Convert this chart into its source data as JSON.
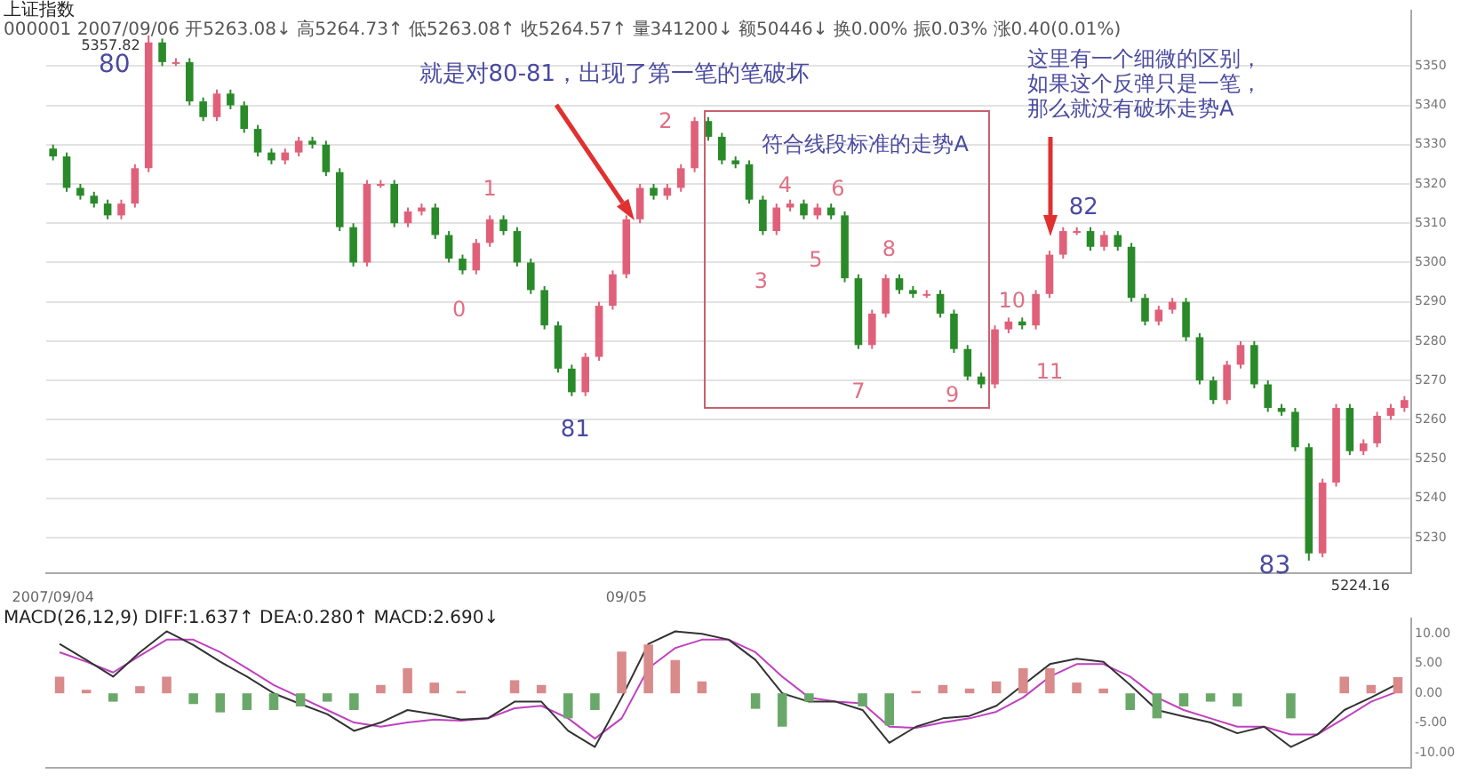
{
  "chart_data": [
    {
      "type": "candlestick",
      "title": "上证指数",
      "subtitle": "000001 2007/09/06 开5263.08↓ 高5264.73↑ 低5263.08↑ 收5264.57↑ 量341200↓ 额50446↓ 换0.00% 振0.03% 涨0.40(0.01%)",
      "categories": [
        "2007/09/04",
        null,
        null,
        null,
        null,
        null,
        null,
        null,
        null,
        null,
        null,
        null,
        null,
        null,
        null,
        null,
        null,
        null,
        null,
        null,
        null,
        null,
        null,
        null,
        null,
        null,
        null,
        null,
        null,
        null,
        null,
        null,
        null,
        null,
        null,
        null,
        null,
        null,
        null,
        null,
        null,
        null,
        "09/05",
        null,
        null,
        null,
        null,
        null,
        null,
        null,
        null,
        null,
        null,
        null,
        null,
        null,
        null,
        null,
        null,
        null,
        null,
        null,
        null,
        null,
        null,
        null,
        null,
        null,
        null,
        null,
        null,
        null,
        null,
        null,
        null,
        null,
        null,
        null,
        null,
        null,
        null,
        null,
        null,
        null,
        null,
        null,
        null,
        null,
        null,
        null,
        null,
        null,
        null,
        null,
        null,
        null,
        null,
        null,
        null,
        null
      ],
      "ohlc": [
        [
          5329,
          5330,
          5326,
          5327
        ],
        [
          5327,
          5328,
          5318,
          5319
        ],
        [
          5319,
          5320,
          5316,
          5317
        ],
        [
          5317,
          5318,
          5314,
          5315
        ],
        [
          5315,
          5316,
          5311,
          5312
        ],
        [
          5312,
          5316,
          5311,
          5315
        ],
        [
          5315,
          5325,
          5314,
          5324
        ],
        [
          5324,
          5357.82,
          5323,
          5356
        ],
        [
          5356,
          5357,
          5350,
          5351
        ],
        [
          5351,
          5352,
          5350,
          5351
        ],
        [
          5351,
          5352,
          5340,
          5341
        ],
        [
          5341,
          5342,
          5336,
          5337
        ],
        [
          5337,
          5344,
          5336,
          5343
        ],
        [
          5343,
          5344,
          5339,
          5340
        ],
        [
          5340,
          5341,
          5333,
          5334
        ],
        [
          5334,
          5335,
          5327,
          5328
        ],
        [
          5328,
          5329,
          5325,
          5326
        ],
        [
          5326,
          5329,
          5325,
          5328
        ],
        [
          5328,
          5332,
          5327,
          5331
        ],
        [
          5331,
          5332,
          5329,
          5330
        ],
        [
          5330,
          5331,
          5322,
          5323
        ],
        [
          5323,
          5324,
          5308,
          5309
        ],
        [
          5309,
          5310,
          5299,
          5300
        ],
        [
          5300,
          5321,
          5299,
          5320
        ],
        [
          5320,
          5321,
          5319,
          5320
        ],
        [
          5320,
          5321,
          5309,
          5310
        ],
        [
          5310,
          5314,
          5309,
          5313
        ],
        [
          5313,
          5315,
          5312,
          5314
        ],
        [
          5314,
          5315,
          5306,
          5307
        ],
        [
          5307,
          5308,
          5300,
          5301
        ],
        [
          5301,
          5302,
          5297,
          5298
        ],
        [
          5298,
          5306,
          5297,
          5305
        ],
        [
          5305,
          5312,
          5304,
          5311
        ],
        [
          5311,
          5312,
          5307,
          5308
        ],
        [
          5308,
          5309,
          5299,
          5300
        ],
        [
          5300,
          5301,
          5292,
          5293
        ],
        [
          5293,
          5294,
          5283,
          5284
        ],
        [
          5284,
          5285,
          5272,
          5273
        ],
        [
          5273,
          5274,
          5266,
          5267
        ],
        [
          5267,
          5277,
          5266,
          5276
        ],
        [
          5276,
          5290,
          5275,
          5289
        ],
        [
          5289,
          5298,
          5288,
          5297
        ],
        [
          5297,
          5312,
          5296,
          5311
        ],
        [
          5311,
          5320,
          5310,
          5319
        ],
        [
          5319,
          5320,
          5316,
          5317
        ],
        [
          5317,
          5320,
          5316,
          5319
        ],
        [
          5319,
          5325,
          5318,
          5324
        ],
        [
          5324,
          5337,
          5323,
          5336
        ],
        [
          5336,
          5337,
          5331,
          5332
        ],
        [
          5332,
          5333,
          5325,
          5326
        ],
        [
          5326,
          5327,
          5324,
          5325
        ],
        [
          5325,
          5326,
          5315,
          5316
        ],
        [
          5316,
          5317,
          5307,
          5308
        ],
        [
          5308,
          5315,
          5307,
          5314
        ],
        [
          5314,
          5316,
          5313,
          5315
        ],
        [
          5315,
          5316,
          5311,
          5312
        ],
        [
          5312,
          5315,
          5311,
          5314
        ],
        [
          5314,
          5315,
          5311,
          5312
        ],
        [
          5312,
          5313,
          5295,
          5296
        ],
        [
          5296,
          5297,
          5278,
          5279
        ],
        [
          5279,
          5288,
          5278,
          5287
        ],
        [
          5287,
          5297,
          5286,
          5296
        ],
        [
          5296,
          5297,
          5292,
          5293
        ],
        [
          5293,
          5294,
          5291,
          5292
        ],
        [
          5292,
          5293,
          5291,
          5292
        ],
        [
          5292,
          5293,
          5286,
          5287
        ],
        [
          5287,
          5288,
          5277,
          5278
        ],
        [
          5278,
          5279,
          5270,
          5271
        ],
        [
          5271,
          5272,
          5268,
          5269
        ],
        [
          5269,
          5284,
          5268,
          5283
        ],
        [
          5283,
          5286,
          5282,
          5285
        ],
        [
          5285,
          5286,
          5283,
          5284
        ],
        [
          5284,
          5293,
          5283,
          5292
        ],
        [
          5292,
          5303,
          5291,
          5302
        ],
        [
          5302,
          5309,
          5301,
          5308
        ],
        [
          5308,
          5309,
          5307,
          5308
        ],
        [
          5308,
          5309,
          5303,
          5304
        ],
        [
          5304,
          5308,
          5303,
          5307
        ],
        [
          5307,
          5308,
          5303,
          5304
        ],
        [
          5304,
          5305,
          5290,
          5291
        ],
        [
          5291,
          5292,
          5284,
          5285
        ],
        [
          5285,
          5289,
          5284,
          5288
        ],
        [
          5288,
          5291,
          5287,
          5290
        ],
        [
          5290,
          5291,
          5280,
          5281
        ],
        [
          5281,
          5282,
          5269,
          5270
        ],
        [
          5270,
          5271,
          5264,
          5265
        ],
        [
          5265,
          5275,
          5264,
          5274
        ],
        [
          5274,
          5280,
          5273,
          5279
        ],
        [
          5279,
          5280,
          5268,
          5269
        ],
        [
          5269,
          5270,
          5262,
          5263
        ],
        [
          5263,
          5264,
          5261,
          5262
        ],
        [
          5262,
          5263,
          5252,
          5253
        ],
        [
          5253,
          5254,
          5224.16,
          5226
        ],
        [
          5226,
          5245,
          5225,
          5244
        ],
        [
          5244,
          5264,
          5243,
          5263
        ],
        [
          5263,
          5264,
          5251,
          5252
        ],
        [
          5252,
          5255,
          5251,
          5254
        ],
        [
          5254,
          5262,
          5253,
          5261
        ],
        [
          5261,
          5264,
          5260,
          5263
        ],
        [
          5263,
          5266,
          5262,
          5265
        ]
      ],
      "ylim": [
        5221,
        5364
      ],
      "yticks": [
        5350,
        5340,
        5330,
        5320,
        5310,
        5300,
        5290,
        5280,
        5270,
        5260,
        5250,
        5240,
        5230
      ],
      "grid": "y",
      "legend": false,
      "annotations": [
        "80",
        "5357.82",
        "就是对80-81，出现了第一笔的笔破坏",
        "0",
        "1",
        "81",
        "2",
        "符合线段标准的走势A",
        "3",
        "4",
        "5",
        "6",
        "7",
        "8",
        "9",
        "10",
        "11",
        "82",
        "这里有一个细微的区别，如果这个反弹只是一笔，那么就没有破坏走势A",
        "83",
        "5224.16"
      ]
    },
    {
      "type": "bar",
      "title": "MACD(26,12,9) DIFF:1.637↑ DEA:0.280↑ MACD:2.690↓",
      "categories": [
        null,
        null,
        null,
        null,
        null,
        null,
        null,
        null,
        null,
        null,
        null,
        null,
        null,
        null,
        null,
        null,
        null,
        null,
        null,
        null,
        null,
        null,
        null,
        null,
        null,
        null,
        null,
        null,
        null,
        null,
        null,
        null,
        null,
        null,
        null,
        null,
        null,
        null,
        null,
        null,
        null,
        null,
        null,
        null,
        null,
        null,
        null,
        null,
        null,
        null,
        null
      ],
      "series": [
        {
          "type": "bar",
          "colors": [
            "#d98a8a",
            "#d98a8a",
            "#6aa86a",
            "#d98a8a",
            "#d98a8a",
            "#6aa86a",
            "#6aa86a",
            "#6aa86a",
            "#6aa86a",
            "#6aa86a",
            "#6aa86a",
            "#6aa86a",
            "#d98a8a",
            "#d98a8a",
            "#d98a8a",
            "#d98a8a",
            "#d98a8a",
            "#d98a8a",
            "#d98a8a",
            "#6aa86a",
            "#6aa86a",
            "#d98a8a",
            "#d98a8a",
            "#d98a8a",
            "#d98a8a",
            "#d98a8a",
            "#6aa86a",
            "#6aa86a",
            "#6aa86a",
            "#d98a8a",
            "#6aa86a",
            "#6aa86a",
            "#d98a8a",
            "#d98a8a",
            "#d98a8a",
            "#d98a8a",
            "#d98a8a",
            "#d98a8a",
            "#d98a8a",
            "#d98a8a",
            "#6aa86a",
            "#6aa86a",
            "#6aa86a",
            "#6aa86a",
            "#6aa86a",
            "#d98a8a",
            "#6aa86a",
            "#d98a8a",
            "#d98a8a",
            "#d98a8a",
            "#d98a8a"
          ],
          "values": [
            2.8,
            0.6,
            -1.4,
            1.2,
            2.8,
            -1.8,
            -3.2,
            -2.8,
            -2.8,
            -2.2,
            -1.4,
            -2.8,
            1.4,
            4.2,
            1.8,
            0.4,
            0,
            2.2,
            1.4,
            -4.2,
            -2.8,
            7.0,
            8.2,
            5.6,
            2.0,
            0,
            -2.6,
            -5.6,
            -1.4,
            0,
            -2.2,
            -5.4,
            0.4,
            1.4,
            0.8,
            2.0,
            4.2,
            4.2,
            1.8,
            0.8,
            -2.8,
            -4.2,
            -2.2,
            -1.4,
            -2.2,
            0,
            -4.2,
            0,
            2.8,
            1.4,
            2.7
          ]
        },
        {
          "type": "line",
          "color": "#333333",
          "values": [
            8.3,
            5.6,
            2.8,
            6.9,
            10.4,
            8.1,
            5.3,
            2.8,
            0,
            -1.8,
            -3.5,
            -6.3,
            -4.9,
            -2.8,
            -3.5,
            -4.4,
            -4.2,
            -1.4,
            -1.4,
            -6.3,
            -9.0,
            -0.7,
            8.3,
            10.4,
            10.0,
            9.0,
            5.6,
            0,
            -1.4,
            -1.4,
            -2.8,
            -8.3,
            -5.6,
            -4.2,
            -3.8,
            -2.1,
            1.4,
            4.9,
            5.8,
            5.3,
            1.4,
            -2.8,
            -3.9,
            -4.9,
            -6.7,
            -5.6,
            -9.0,
            -6.9,
            -2.8,
            -0.7,
            1.6
          ]
        },
        {
          "type": "line",
          "color": "#c040c0",
          "values": [
            6.9,
            5.3,
            3.5,
            6.3,
            9.0,
            9.0,
            6.9,
            4.2,
            1.4,
            -0.7,
            -2.8,
            -4.9,
            -5.6,
            -4.9,
            -4.4,
            -4.6,
            -4.2,
            -2.5,
            -2.1,
            -4.2,
            -7.6,
            -4.2,
            4.2,
            7.6,
            9.0,
            9.0,
            6.9,
            2.8,
            -0.7,
            -1.4,
            -1.7,
            -5.6,
            -5.8,
            -4.9,
            -4.2,
            -3.1,
            -0.7,
            2.8,
            4.9,
            4.9,
            2.8,
            -0.7,
            -2.8,
            -4.2,
            -5.6,
            -5.6,
            -6.9,
            -6.9,
            -4.2,
            -1.4,
            0.3
          ]
        }
      ],
      "ylim": [
        -12.5,
        12.5
      ],
      "yticks": [
        {
          "value": 10,
          "label": "10.00"
        },
        {
          "value": 5,
          "label": "5.00"
        },
        {
          "value": 0,
          "label": "0.00"
        },
        {
          "value": -5,
          "label": "-5.00"
        },
        {
          "value": -10,
          "label": "-10.00"
        }
      ],
      "tick_labels": "y",
      "legend": false
    }
  ]
}
